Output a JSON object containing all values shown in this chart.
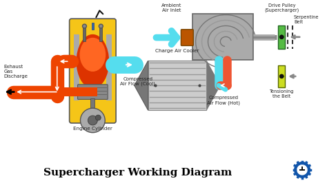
{
  "title": "Supercharger Working Diagram",
  "title_fontsize": 11,
  "bg_color": "#ffffff",
  "labels": {
    "exhaust": "Exhaust\nGas\nDischarge",
    "engine": "Engine Cylinder",
    "comp_cool": "Compressed\nAir Flow (Cool)",
    "charge_cooler": "Charge Air Cooler",
    "comp_hot": "Compressed\nAir Flow (Hot)",
    "ambient": "Ambient\nAir Inlet",
    "drive_pulley": "Drive Pulley\n(Supercharger)",
    "serpentine": "Serpentine\nBelt",
    "tensioning": "Tensioning\nthe Belt"
  },
  "colors": {
    "orange_exhaust": "#EE4400",
    "cyan_flow": "#55DDEE",
    "red_hot": "#EE5533",
    "yellow_body": "#F5C518",
    "gray_metal": "#888888",
    "green_pulley": "#55BB44",
    "lime_tensioner": "#CCDD22",
    "dark_text": "#222222",
    "white": "#ffffff",
    "piston_gray": "#999999",
    "cooler_gray": "#BBBBBB",
    "sc_gray": "#AAAAAA",
    "sc_dark": "#888888"
  }
}
